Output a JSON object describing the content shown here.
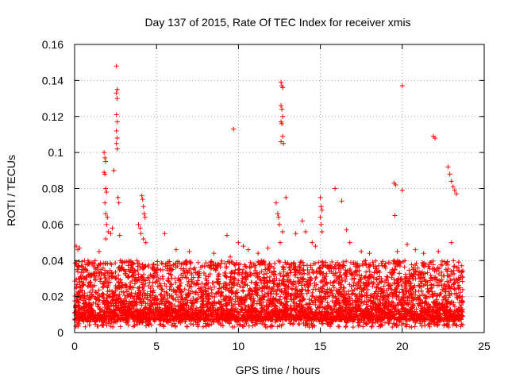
{
  "chart_data": {
    "type": "scatter",
    "title": "Day 137 of 2015, Rate Of TEC Index for receiver xmis",
    "xlabel": "GPS time / hours",
    "ylabel": "ROTI / TECUs",
    "xlim": [
      0,
      25
    ],
    "ylim": [
      0,
      0.16
    ],
    "xticks": [
      0,
      5,
      10,
      15,
      20,
      25
    ],
    "xtick_labels": [
      "0",
      "5",
      "10",
      "15",
      "20",
      "25"
    ],
    "yticks": [
      0,
      0.02,
      0.04,
      0.06,
      0.08,
      0.1,
      0.12,
      0.14,
      0.16
    ],
    "ytick_labels": [
      "0",
      "0.02",
      "0.04",
      "0.06",
      "0.08",
      "0.1",
      "0.12",
      "0.14",
      "0.16"
    ],
    "grid": true,
    "marker": "+",
    "color": "#ff0000",
    "series": [
      {
        "name": "ROTI",
        "points": [
          [
            0.1,
            0.048
          ],
          [
            0.2,
            0.046
          ],
          [
            0.3,
            0.047
          ],
          [
            0.15,
            0.035
          ],
          [
            0.25,
            0.03
          ],
          [
            1.5,
            0.045
          ],
          [
            1.8,
            0.1
          ],
          [
            1.85,
            0.097
          ],
          [
            1.9,
            0.095
          ],
          [
            1.8,
            0.089
          ],
          [
            1.85,
            0.088
          ],
          [
            1.9,
            0.08
          ],
          [
            1.95,
            0.078
          ],
          [
            1.85,
            0.072
          ],
          [
            1.9,
            0.066
          ],
          [
            2.0,
            0.064
          ],
          [
            1.95,
            0.06
          ],
          [
            2.05,
            0.056
          ],
          [
            1.9,
            0.052
          ],
          [
            2.2,
            0.055
          ],
          [
            2.3,
            0.058
          ],
          [
            2.4,
            0.09
          ],
          [
            2.55,
            0.148
          ],
          [
            2.6,
            0.135
          ],
          [
            2.55,
            0.133
          ],
          [
            2.6,
            0.13
          ],
          [
            2.55,
            0.121
          ],
          [
            2.6,
            0.117
          ],
          [
            2.55,
            0.112
          ],
          [
            2.6,
            0.108
          ],
          [
            2.55,
            0.105
          ],
          [
            2.6,
            0.102
          ],
          [
            2.65,
            0.075
          ],
          [
            2.7,
            0.072
          ],
          [
            2.75,
            0.054
          ],
          [
            3.9,
            0.06
          ],
          [
            4.0,
            0.058
          ],
          [
            4.05,
            0.055
          ],
          [
            4.1,
            0.076
          ],
          [
            4.15,
            0.074
          ],
          [
            4.2,
            0.07
          ],
          [
            4.25,
            0.066
          ],
          [
            4.3,
            0.064
          ],
          [
            4.2,
            0.052
          ],
          [
            4.35,
            0.05
          ],
          [
            5.5,
            0.055
          ],
          [
            6.2,
            0.046
          ],
          [
            7.0,
            0.045
          ],
          [
            8.5,
            0.044
          ],
          [
            9.3,
            0.054
          ],
          [
            9.5,
            0.042
          ],
          [
            9.7,
            0.113
          ],
          [
            10.0,
            0.05
          ],
          [
            10.3,
            0.048
          ],
          [
            10.6,
            0.046
          ],
          [
            11.2,
            0.044
          ],
          [
            11.8,
            0.047
          ],
          [
            12.3,
            0.072
          ],
          [
            12.4,
            0.066
          ],
          [
            12.45,
            0.064
          ],
          [
            12.5,
            0.06
          ],
          [
            12.55,
            0.05
          ],
          [
            12.6,
            0.139
          ],
          [
            12.65,
            0.137
          ],
          [
            12.7,
            0.136
          ],
          [
            12.6,
            0.126
          ],
          [
            12.65,
            0.124
          ],
          [
            12.7,
            0.12
          ],
          [
            12.6,
            0.117
          ],
          [
            12.65,
            0.116
          ],
          [
            12.7,
            0.109
          ],
          [
            12.6,
            0.106
          ],
          [
            12.75,
            0.105
          ],
          [
            12.7,
            0.056
          ],
          [
            12.9,
            0.075
          ],
          [
            13.5,
            0.055
          ],
          [
            13.9,
            0.062
          ],
          [
            14.1,
            0.056
          ],
          [
            14.5,
            0.05
          ],
          [
            14.7,
            0.048
          ],
          [
            15.0,
            0.075
          ],
          [
            15.05,
            0.07
          ],
          [
            15.1,
            0.068
          ],
          [
            15.0,
            0.064
          ],
          [
            15.05,
            0.06
          ],
          [
            15.1,
            0.056
          ],
          [
            15.9,
            0.08
          ],
          [
            16.3,
            0.073
          ],
          [
            16.6,
            0.057
          ],
          [
            16.8,
            0.05
          ],
          [
            17.5,
            0.045
          ],
          [
            18.0,
            0.044
          ],
          [
            19.5,
            0.083
          ],
          [
            19.6,
            0.082
          ],
          [
            19.55,
            0.065
          ],
          [
            19.7,
            0.045
          ],
          [
            20.0,
            0.137
          ],
          [
            20.0,
            0.079
          ],
          [
            20.3,
            0.049
          ],
          [
            20.8,
            0.046
          ],
          [
            21.3,
            0.044
          ],
          [
            21.9,
            0.109
          ],
          [
            22.0,
            0.108
          ],
          [
            22.2,
            0.045
          ],
          [
            22.8,
            0.092
          ],
          [
            22.9,
            0.088
          ],
          [
            23.0,
            0.084
          ],
          [
            23.1,
            0.081
          ],
          [
            23.2,
            0.079
          ],
          [
            23.3,
            0.077
          ],
          [
            23.0,
            0.05
          ]
        ]
      }
    ],
    "background_band": {
      "description": "dense scatter of ROTI values between about 0.003 and 0.04 TECU across 0 to 23.7 hours",
      "x_range": [
        0,
        23.7
      ],
      "y_range": [
        0.003,
        0.04
      ]
    }
  }
}
